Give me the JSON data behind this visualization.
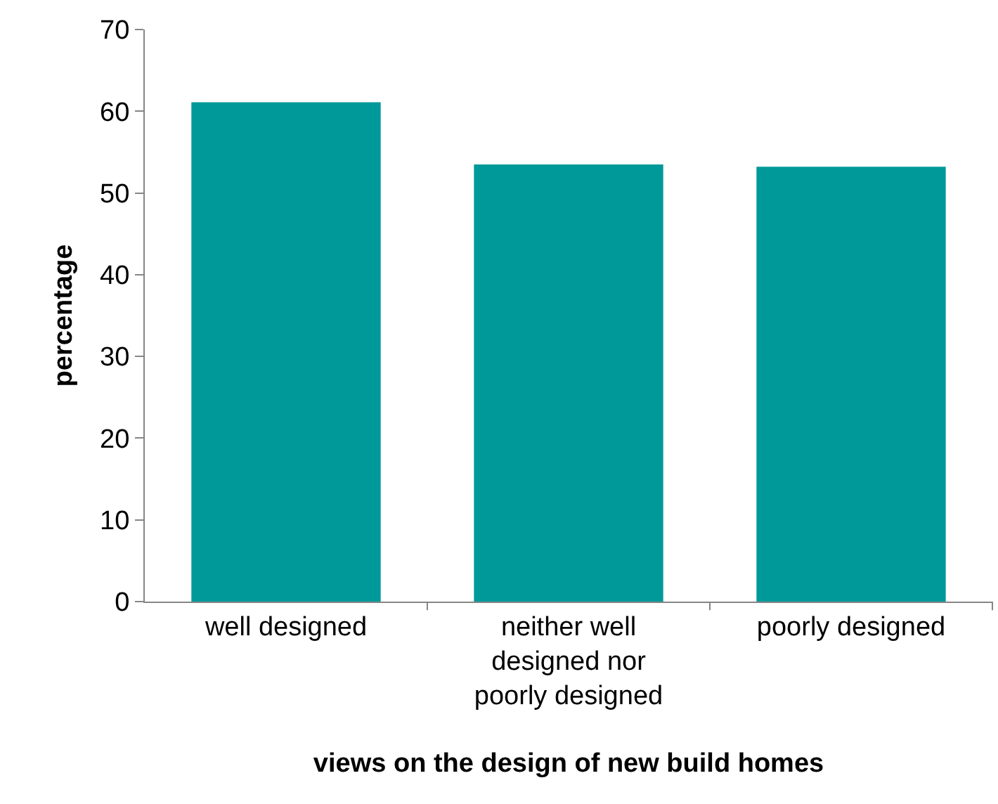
{
  "chart_data": {
    "type": "bar",
    "xlabel": "views on the design of new build homes",
    "ylabel": "percentage",
    "categories": [
      "well designed",
      "neither well designed nor poorly designed",
      "poorly designed"
    ],
    "values": [
      61.1,
      53.5,
      53.2
    ],
    "color": "#009999",
    "ylim": [
      0,
      70
    ],
    "yticks": [
      0,
      10,
      20,
      30,
      40,
      50,
      60,
      70
    ],
    "grid": false,
    "legend": false
  }
}
